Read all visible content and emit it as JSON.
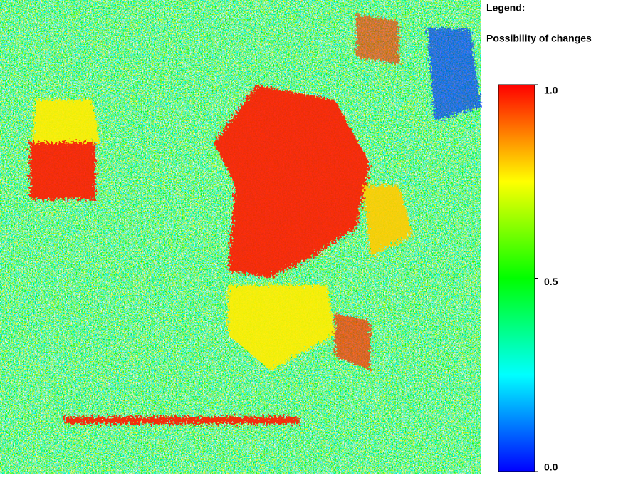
{
  "chart_data": {
    "type": "heatmap",
    "legend_title": "Legend:",
    "colorbar_label": "Possibility of changes",
    "clim": [
      0,
      1
    ],
    "cticks": [
      {
        "value": 0,
        "label": "0.0"
      },
      {
        "value": 0.5,
        "label": "0.5"
      },
      {
        "value": 1,
        "label": "1.0"
      }
    ],
    "colormap": [
      "#0000ff",
      "#00ffff",
      "#00ff00",
      "#ffff00",
      "#ff0000"
    ]
  }
}
